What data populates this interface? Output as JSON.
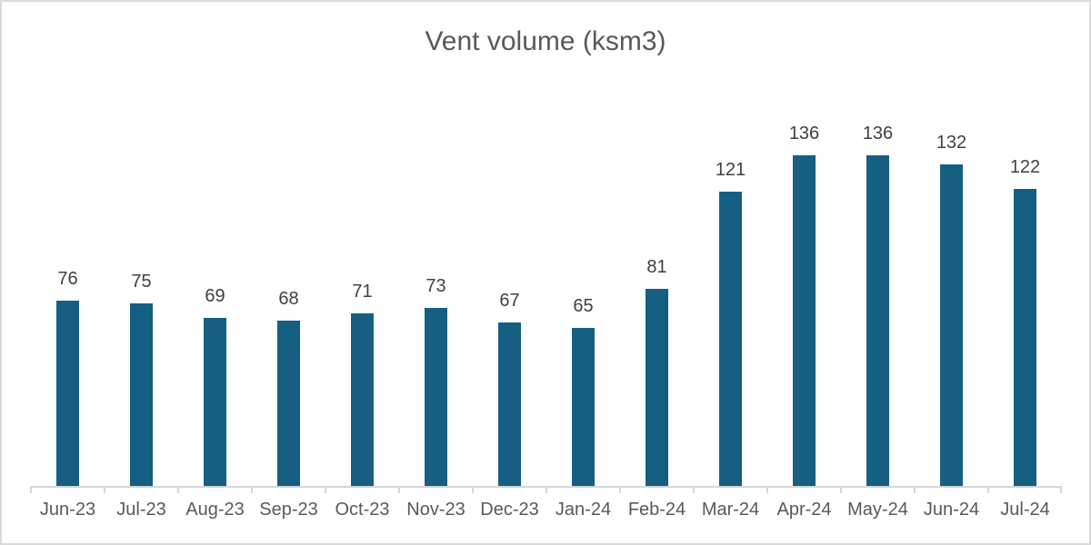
{
  "chart": {
    "title": "Vent volume (ksm3)"
  },
  "chart_data": {
    "type": "bar",
    "title": "Vent volume (ksm3)",
    "categories": [
      "Jun-23",
      "Jul-23",
      "Aug-23",
      "Sep-23",
      "Oct-23",
      "Nov-23",
      "Dec-23",
      "Jan-24",
      "Feb-24",
      "Mar-24",
      "Apr-24",
      "May-24",
      "Jun-24",
      "Jul-24"
    ],
    "values": [
      76,
      75,
      69,
      68,
      71,
      73,
      67,
      65,
      81,
      121,
      136,
      136,
      132,
      122
    ],
    "xlabel": "",
    "ylabel": "",
    "ylim": [
      0,
      170
    ],
    "grid": false,
    "legend_position": "none",
    "data_labels": true,
    "colors": {
      "bar": "#156082",
      "title_text": "#595959",
      "data_label_text": "#404040",
      "axis_label_text": "#595959",
      "axis_line": "#d6d6d6",
      "chart_border": "#d9d9d9",
      "background": "#ffffff"
    }
  }
}
